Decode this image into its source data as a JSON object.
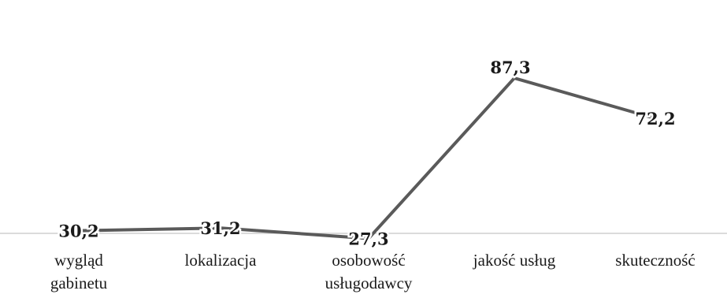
{
  "chart_data": {
    "type": "line",
    "categories": [
      [
        "wygląd",
        "gabinetu"
      ],
      [
        "lokalizacja"
      ],
      [
        "osobowość",
        "usługodawcy"
      ],
      [
        "jakość usług"
      ],
      [
        "skuteczność"
      ]
    ],
    "series": [
      {
        "values": [
          30.2,
          31.2,
          27.3,
          87.3,
          72.2
        ],
        "data_labels": [
          "30,2",
          "31,2",
          "27,3",
          "87,3",
          "72,2"
        ]
      }
    ],
    "title": "",
    "xlabel": "",
    "ylabel": "",
    "ylim": [
      0,
      100
    ],
    "grid": false,
    "legend": "none",
    "colors": {
      "line": "#5a5a5a",
      "axis": "#cfcfcf",
      "text": "#1a1a1a"
    }
  }
}
